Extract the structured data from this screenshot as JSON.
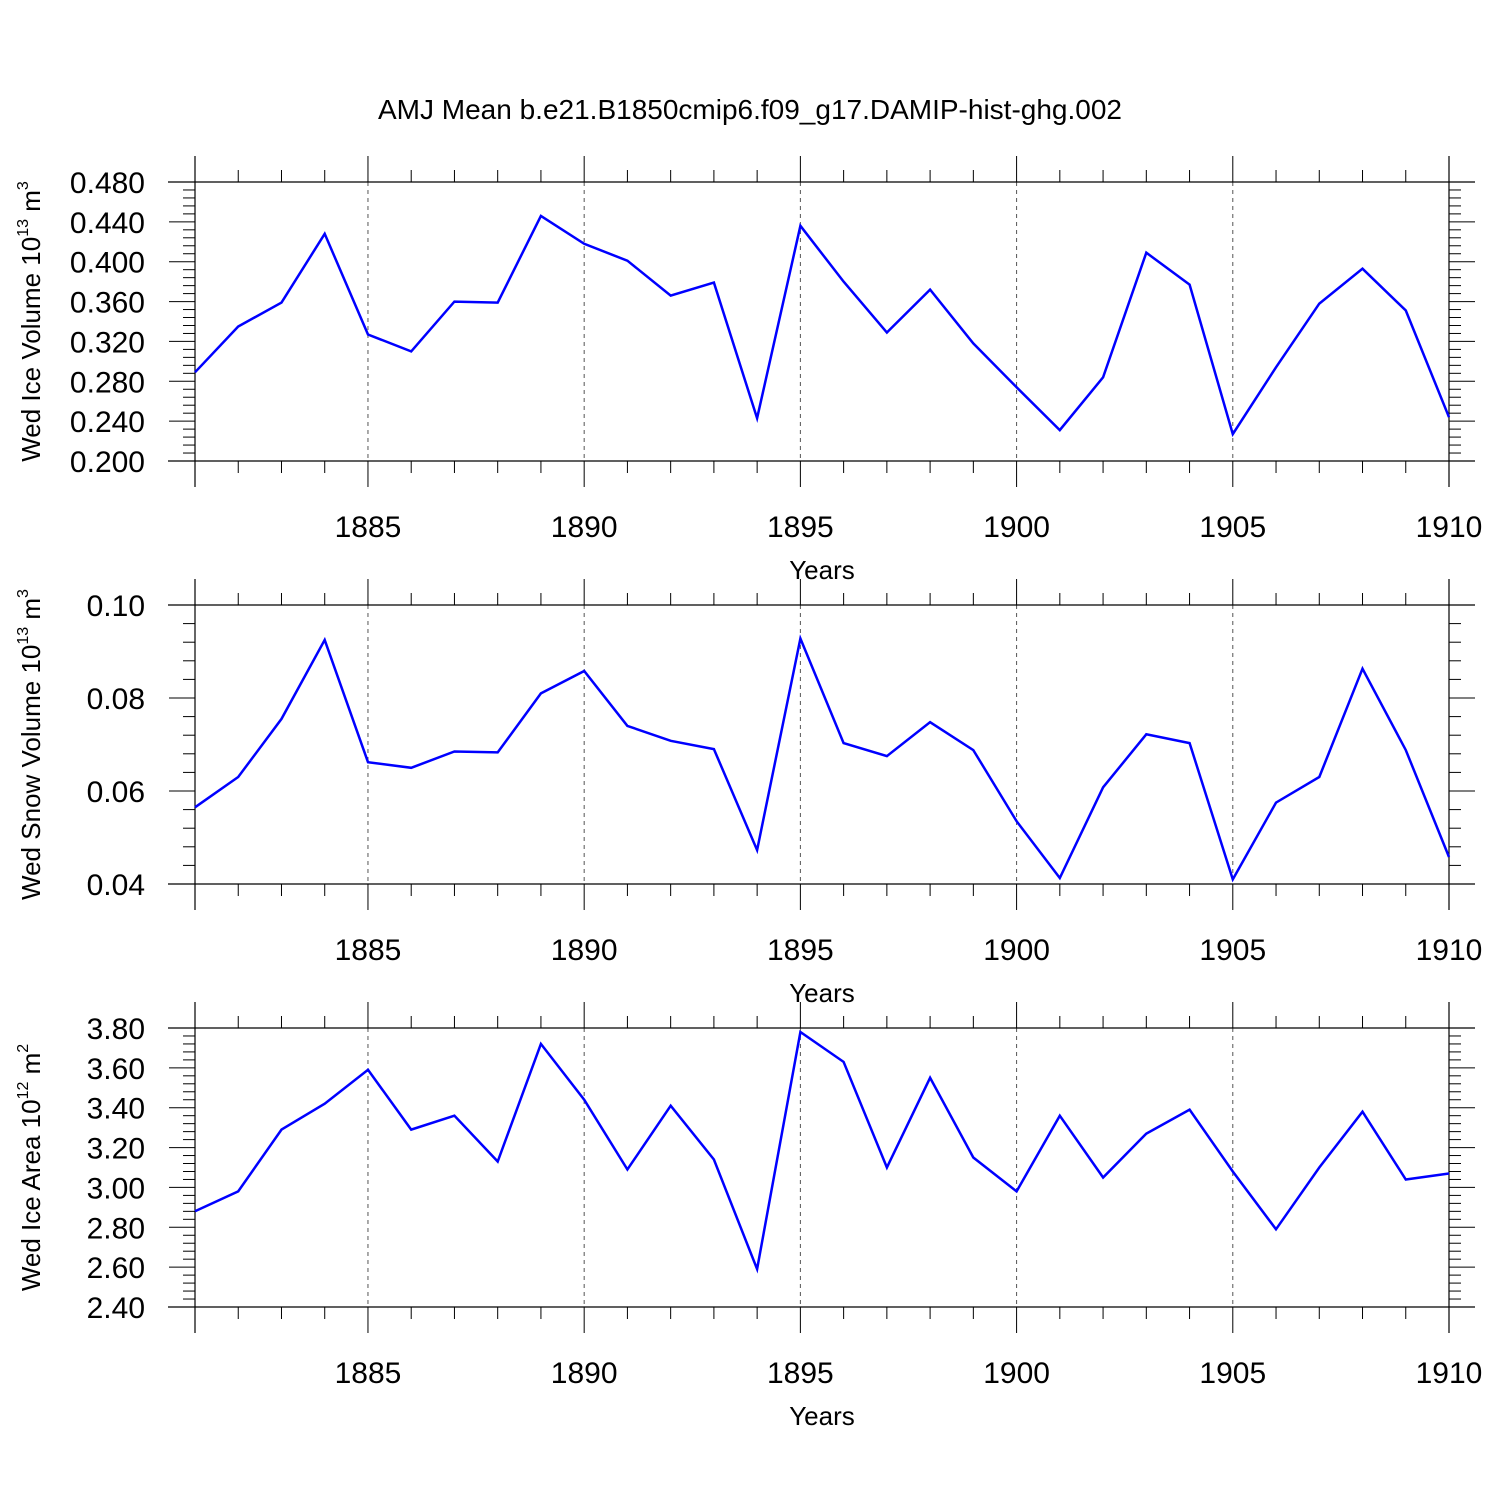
{
  "chart_data": {
    "type": "line",
    "title": "AMJ Mean b.e21.B1850cmip6.f09_g17.DAMIP-hist-ghg.002",
    "x": [
      1881,
      1882,
      1883,
      1884,
      1885,
      1886,
      1887,
      1888,
      1889,
      1890,
      1891,
      1892,
      1893,
      1894,
      1895,
      1896,
      1897,
      1898,
      1899,
      1900,
      1901,
      1902,
      1903,
      1904,
      1905,
      1906,
      1907,
      1908,
      1909,
      1910
    ],
    "xlim": [
      1881,
      1910
    ],
    "xticks": [
      1885,
      1890,
      1895,
      1900,
      1905,
      1910
    ],
    "xtick_labels": [
      "1885",
      "1890",
      "1895",
      "1900",
      "1905",
      "1910"
    ],
    "line_color": "#0000ff",
    "panels": [
      {
        "xlabel": "Years",
        "ylabel": {
          "main": "Wed Ice Volume 10",
          "sup": "13",
          "unit": " m",
          "unit_sup": "3"
        },
        "ylim": [
          0.2,
          0.48
        ],
        "yticks": [
          0.2,
          0.24,
          0.28,
          0.32,
          0.36,
          0.4,
          0.44,
          0.48
        ],
        "ytick_labels": [
          "0.200",
          "0.240",
          "0.280",
          "0.320",
          "0.360",
          "0.400",
          "0.440",
          "0.480"
        ],
        "values": [
          0.289,
          0.335,
          0.359,
          0.428,
          0.327,
          0.31,
          0.36,
          0.359,
          0.446,
          0.418,
          0.401,
          0.366,
          0.379,
          0.243,
          0.436,
          0.38,
          0.329,
          0.372,
          0.318,
          0.274,
          0.231,
          0.284,
          0.409,
          0.377,
          0.227,
          0.294,
          0.358,
          0.393,
          0.351,
          0.244
        ]
      },
      {
        "xlabel": "Years",
        "ylabel": {
          "main": "Wed Snow Volume 10",
          "sup": "13",
          "unit": " m",
          "unit_sup": "3"
        },
        "ylim": [
          0.04,
          0.1
        ],
        "yticks": [
          0.04,
          0.06,
          0.08,
          0.1
        ],
        "ytick_labels": [
          "0.04",
          "0.06",
          "0.08",
          "0.10"
        ],
        "values": [
          0.0565,
          0.063,
          0.0755,
          0.0925,
          0.0662,
          0.065,
          0.0685,
          0.0683,
          0.081,
          0.0858,
          0.074,
          0.0708,
          0.069,
          0.0473,
          0.0928,
          0.0703,
          0.0675,
          0.0748,
          0.0688,
          0.0535,
          0.0413,
          0.0608,
          0.0722,
          0.0703,
          0.041,
          0.0575,
          0.063,
          0.0863,
          0.0688,
          0.0458
        ]
      },
      {
        "xlabel": "Years",
        "ylabel": {
          "main": "Wed Ice Area 10",
          "sup": "12",
          "unit": " m",
          "unit_sup": "2"
        },
        "ylim": [
          2.4,
          3.8
        ],
        "yticks": [
          2.4,
          2.6,
          2.8,
          3.0,
          3.2,
          3.4,
          3.6,
          3.8
        ],
        "ytick_labels": [
          "2.40",
          "2.60",
          "2.80",
          "3.00",
          "3.20",
          "3.40",
          "3.60",
          "3.80"
        ],
        "values": [
          2.88,
          2.98,
          3.29,
          3.42,
          3.59,
          3.29,
          3.36,
          3.13,
          3.72,
          3.44,
          3.09,
          3.41,
          3.14,
          2.59,
          3.78,
          3.63,
          3.1,
          3.55,
          3.15,
          2.98,
          3.36,
          3.05,
          3.27,
          3.39,
          3.08,
          2.79,
          3.1,
          3.38,
          3.04,
          3.07
        ]
      }
    ]
  }
}
